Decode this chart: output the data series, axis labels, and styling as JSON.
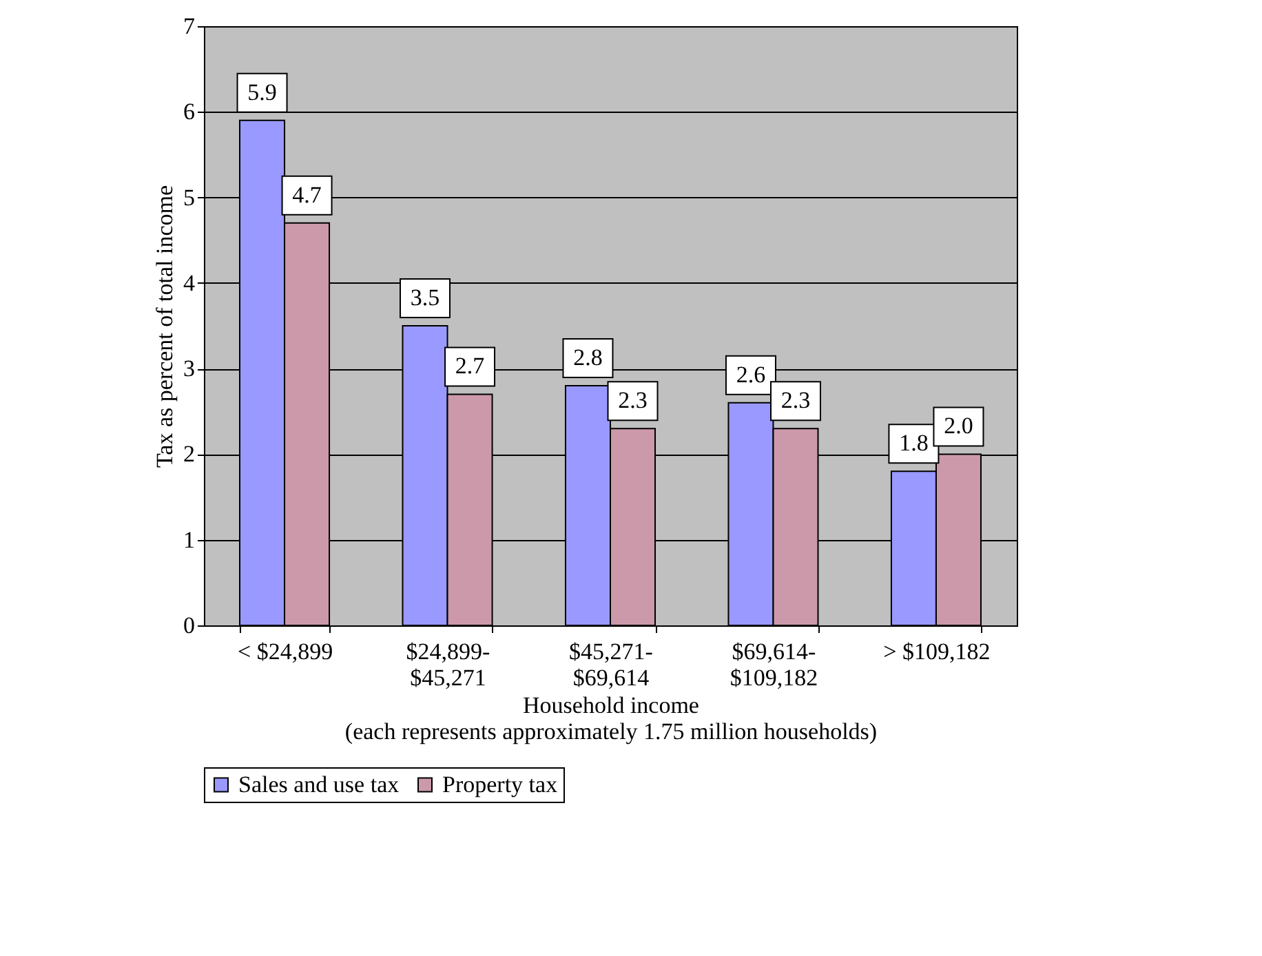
{
  "chart_data": {
    "type": "bar",
    "xlabel": "Household income",
    "ylabel": "Tax as percent of total income",
    "annotations": [
      "(each represents approximately 1.75 million households)"
    ],
    "categories": [
      "< $24,899",
      "$24,899-\n$45,271",
      "$45,271-\n$69,614",
      "$69,614-\n$109,182",
      "> $109,182"
    ],
    "series": [
      {
        "name": "Sales and use tax",
        "color": "#9999ff",
        "values": [
          5.9,
          3.5,
          2.8,
          2.6,
          1.8
        ],
        "value_labels": [
          "5.9",
          "3.5",
          "2.8",
          "2.6",
          "1.8"
        ]
      },
      {
        "name": "Property tax",
        "color": "#cc99aa",
        "values": [
          4.7,
          2.7,
          2.3,
          2.3,
          2.0
        ],
        "value_labels": [
          "4.7",
          "2.7",
          "2.3",
          "2.3",
          "2.0"
        ]
      }
    ],
    "ylim": [
      0,
      7
    ],
    "yticks": [
      0,
      1,
      2,
      3,
      4,
      5,
      6,
      7
    ],
    "grid": "y",
    "legend": "bottom"
  }
}
